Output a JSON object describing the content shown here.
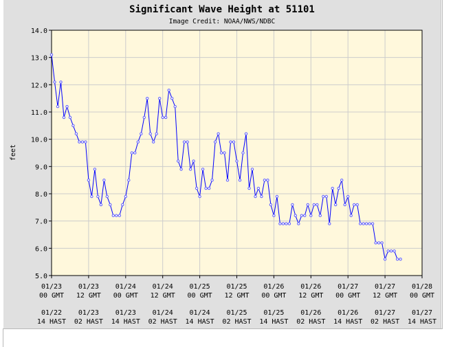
{
  "chart_data": {
    "type": "line",
    "title": "Significant Wave Height at 51101",
    "subtitle": "Image Credit: NOAA/NWS/NDBC",
    "ylabel": "feet",
    "xlabel": "",
    "ylim": [
      5.0,
      14.0
    ],
    "yticks": [
      "5.0",
      "6.0",
      "7.0",
      "8.0",
      "9.0",
      "10.0",
      "11.0",
      "12.0",
      "13.0",
      "14.0"
    ],
    "xlim_hours": [
      0,
      120
    ],
    "xticks": [
      {
        "gmt_date": "01/23",
        "gmt_time": "00 GMT",
        "hast_date": "01/22",
        "hast_time": "14 HAST"
      },
      {
        "gmt_date": "01/23",
        "gmt_time": "12 GMT",
        "hast_date": "01/23",
        "hast_time": "02 HAST"
      },
      {
        "gmt_date": "01/24",
        "gmt_time": "00 GMT",
        "hast_date": "01/23",
        "hast_time": "14 HAST"
      },
      {
        "gmt_date": "01/24",
        "gmt_time": "12 GMT",
        "hast_date": "01/24",
        "hast_time": "02 HAST"
      },
      {
        "gmt_date": "01/25",
        "gmt_time": "00 GMT",
        "hast_date": "01/24",
        "hast_time": "14 HAST"
      },
      {
        "gmt_date": "01/25",
        "gmt_time": "12 GMT",
        "hast_date": "01/25",
        "hast_time": "02 HAST"
      },
      {
        "gmt_date": "01/26",
        "gmt_time": "00 GMT",
        "hast_date": "01/25",
        "hast_time": "14 HAST"
      },
      {
        "gmt_date": "01/26",
        "gmt_time": "12 GMT",
        "hast_date": "01/26",
        "hast_time": "02 HAST"
      },
      {
        "gmt_date": "01/27",
        "gmt_time": "00 GMT",
        "hast_date": "01/26",
        "hast_time": "14 HAST"
      },
      {
        "gmt_date": "01/27",
        "gmt_time": "12 GMT",
        "hast_date": "01/27",
        "hast_time": "02 HAST"
      },
      {
        "gmt_date": "01/28",
        "gmt_time": "00 GMT",
        "hast_date": "01/27",
        "hast_time": "14 HAST"
      }
    ],
    "grid": true,
    "colors": {
      "frame": "#e0e0e0",
      "plot_bg": "#fff8dc",
      "grid": "#cccccc",
      "line": "#0000ff",
      "markers": "#6060ff"
    },
    "series": [
      {
        "x_hours": [
          0,
          1,
          2,
          3,
          4,
          5,
          6,
          7,
          8,
          9,
          10,
          11,
          12,
          13,
          14,
          15,
          16,
          17,
          18,
          19,
          20,
          21,
          22,
          23,
          24,
          25,
          26,
          27,
          28,
          29,
          30,
          31,
          32,
          33,
          34,
          35,
          36,
          37,
          38,
          39,
          40,
          41,
          42,
          43,
          44,
          45,
          46,
          47,
          48,
          49,
          50,
          51,
          52,
          53,
          54,
          55,
          56,
          57,
          58,
          59,
          60,
          61,
          62,
          63,
          64,
          65,
          66,
          67,
          68,
          69,
          70,
          71,
          72,
          73,
          74,
          75,
          76,
          77,
          78,
          79,
          80,
          81,
          82,
          83,
          84,
          85,
          86,
          87,
          88,
          89,
          90,
          91,
          92,
          93,
          94,
          95,
          96,
          97,
          98,
          99,
          100,
          101,
          102,
          103,
          104,
          105,
          106,
          107,
          108,
          109,
          110,
          111,
          112,
          113
        ],
        "values": [
          13.1,
          12.1,
          11.2,
          12.1,
          10.8,
          11.2,
          10.8,
          10.5,
          10.2,
          9.9,
          9.9,
          9.9,
          8.5,
          7.9,
          8.9,
          7.9,
          7.6,
          8.5,
          7.9,
          7.6,
          7.2,
          7.2,
          7.2,
          7.6,
          7.9,
          8.5,
          9.5,
          9.5,
          9.9,
          10.2,
          10.8,
          11.5,
          10.2,
          9.9,
          10.2,
          11.5,
          10.8,
          10.8,
          11.8,
          11.5,
          11.2,
          9.2,
          8.9,
          9.9,
          9.9,
          8.9,
          9.2,
          8.2,
          7.9,
          8.9,
          8.2,
          8.2,
          8.5,
          9.9,
          10.2,
          9.5,
          9.5,
          8.5,
          9.9,
          9.9,
          9.2,
          8.5,
          9.5,
          10.2,
          8.2,
          8.9,
          7.9,
          8.2,
          7.9,
          8.5,
          8.5,
          7.6,
          7.2,
          7.9,
          6.9,
          6.9,
          6.9,
          6.9,
          7.6,
          7.2,
          6.9,
          7.2,
          7.2,
          7.6,
          7.2,
          7.6,
          7.6,
          7.2,
          7.9,
          7.9,
          6.9,
          8.2,
          7.6,
          8.2,
          8.5,
          7.6,
          7.9,
          7.2,
          7.6,
          7.6,
          6.9,
          6.9,
          6.9,
          6.9,
          6.9,
          6.2,
          6.2,
          6.2,
          5.6,
          5.9,
          5.9,
          5.9,
          5.6,
          5.6
        ]
      }
    ]
  }
}
